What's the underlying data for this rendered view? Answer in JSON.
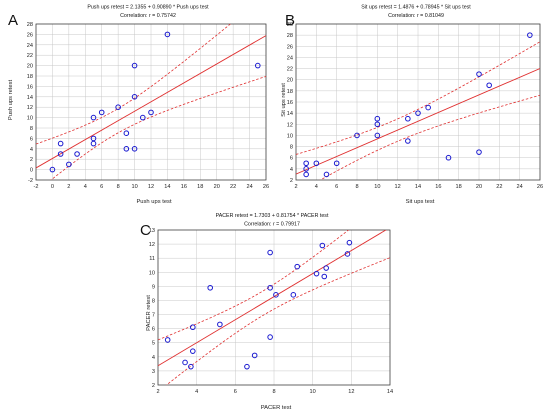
{
  "chart_data": [
    {
      "panel": "A",
      "type": "scatter",
      "title": "Push ups retest = 2.1355 + 0.90890 * Push ups test",
      "subtitle": "Correlation: r = 0.75742",
      "xlabel": "Push ups test",
      "ylabel": "Push ups retest",
      "xlim": [
        -2,
        26
      ],
      "ylim": [
        -2,
        28
      ],
      "xticks": [
        -2,
        0,
        2,
        4,
        6,
        8,
        10,
        12,
        14,
        16,
        18,
        20,
        22,
        24,
        26
      ],
      "yticks": [
        -2,
        0,
        2,
        4,
        6,
        8,
        10,
        12,
        14,
        16,
        18,
        20,
        22,
        24,
        26,
        28
      ],
      "fit": {
        "intercept": 2.1355,
        "slope": 0.9089
      },
      "points": [
        [
          0,
          0
        ],
        [
          1,
          3
        ],
        [
          1,
          5
        ],
        [
          2,
          1
        ],
        [
          3,
          3
        ],
        [
          5,
          5
        ],
        [
          5,
          6
        ],
        [
          5,
          10
        ],
        [
          6,
          11
        ],
        [
          8,
          12
        ],
        [
          9,
          4
        ],
        [
          9,
          7
        ],
        [
          10,
          4
        ],
        [
          10,
          14
        ],
        [
          10,
          20
        ],
        [
          11,
          10
        ],
        [
          12,
          11
        ],
        [
          14,
          26
        ],
        [
          25,
          20
        ]
      ],
      "colors": {
        "points": "#1a1ad0",
        "fit": "#e03030",
        "ci": "#e03030",
        "grid": "#c8c8c8"
      }
    },
    {
      "panel": "B",
      "type": "scatter",
      "title": "Sit ups retest = 1.4876 + 0.78945 * Sit ups test",
      "subtitle": "Correlation: r = 0.81049",
      "xlabel": "Sit ups test",
      "ylabel": "Sit ups retest",
      "xlim": [
        2,
        26
      ],
      "ylim": [
        2,
        30
      ],
      "xticks": [
        2,
        4,
        6,
        8,
        10,
        12,
        14,
        16,
        18,
        20,
        22,
        24,
        26
      ],
      "yticks": [
        2,
        4,
        6,
        8,
        10,
        12,
        14,
        16,
        18,
        20,
        22,
        24,
        26,
        28,
        30
      ],
      "fit": {
        "intercept": 1.4876,
        "slope": 0.78945
      },
      "points": [
        [
          3,
          3
        ],
        [
          3,
          4
        ],
        [
          3,
          5
        ],
        [
          4,
          5
        ],
        [
          5,
          3
        ],
        [
          6,
          5
        ],
        [
          8,
          10
        ],
        [
          10,
          10
        ],
        [
          10,
          12
        ],
        [
          10,
          13
        ],
        [
          13,
          9
        ],
        [
          13,
          13
        ],
        [
          14,
          14
        ],
        [
          15,
          15
        ],
        [
          17,
          6
        ],
        [
          20,
          7
        ],
        [
          20,
          21
        ],
        [
          21,
          19
        ],
        [
          25,
          28
        ]
      ],
      "colors": {
        "points": "#1a1ad0",
        "fit": "#e03030",
        "ci": "#e03030",
        "grid": "#c8c8c8"
      }
    },
    {
      "panel": "C",
      "type": "scatter",
      "title": "PACER retest = 1.7303 + 0.81754 * PACER test",
      "subtitle": "Correlation: r = 0.79917",
      "xlabel": "PACER test",
      "ylabel": "PACER retest",
      "xlim": [
        2,
        14
      ],
      "ylim": [
        2,
        13
      ],
      "xticks": [
        2,
        4,
        6,
        8,
        10,
        12,
        14
      ],
      "yticks": [
        2,
        3,
        4,
        5,
        6,
        7,
        8,
        9,
        10,
        11,
        12,
        13
      ],
      "fit": {
        "intercept": 1.7303,
        "slope": 0.81754
      },
      "points": [
        [
          2.5,
          5.2
        ],
        [
          3.4,
          3.6
        ],
        [
          3.7,
          3.3
        ],
        [
          3.8,
          4.4
        ],
        [
          3.8,
          6.1
        ],
        [
          4.7,
          8.9
        ],
        [
          5.2,
          6.3
        ],
        [
          6.6,
          3.3
        ],
        [
          7,
          4.1
        ],
        [
          7.8,
          5.4
        ],
        [
          7.8,
          8.9
        ],
        [
          7.8,
          11.4
        ],
        [
          8.1,
          8.4
        ],
        [
          9,
          8.4
        ],
        [
          9.2,
          10.4
        ],
        [
          10.2,
          9.9
        ],
        [
          10.5,
          11.9
        ],
        [
          10.6,
          9.7
        ],
        [
          10.7,
          10.3
        ],
        [
          11.8,
          11.3
        ],
        [
          11.9,
          12.1
        ]
      ],
      "colors": {
        "points": "#1a1ad0",
        "fit": "#e03030",
        "ci": "#e03030",
        "grid": "#c8c8c8"
      }
    }
  ]
}
